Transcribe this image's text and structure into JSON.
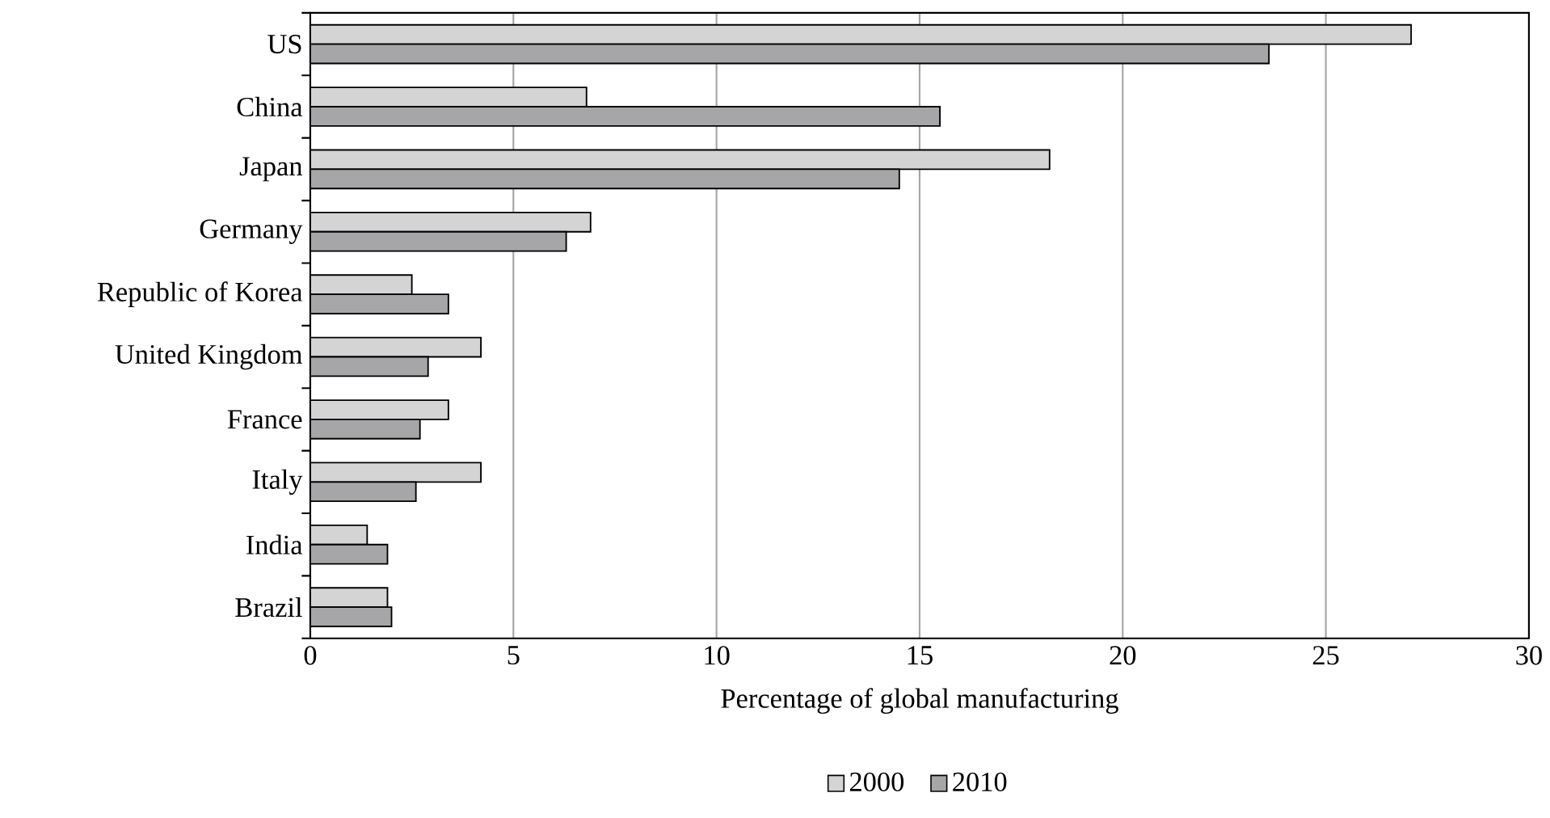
{
  "chart_data": {
    "type": "bar",
    "orientation": "horizontal",
    "xlabel": "Percentage of global manufacturing",
    "categories": [
      "US",
      "China",
      "Japan",
      "Germany",
      "Republic of Korea",
      "United Kingdom",
      "France",
      "Italy",
      "India",
      "Brazil"
    ],
    "series": [
      {
        "name": "2000",
        "color": "#d4d4d4",
        "values": [
          27.1,
          6.8,
          18.2,
          6.9,
          2.5,
          4.2,
          3.4,
          4.2,
          1.4,
          1.9
        ]
      },
      {
        "name": "2010",
        "color": "#a6a6a8",
        "values": [
          23.6,
          15.5,
          14.5,
          6.3,
          3.4,
          2.9,
          2.7,
          2.6,
          1.9,
          2.0
        ]
      }
    ],
    "xlim": [
      0,
      30
    ],
    "xticks": [
      0,
      5,
      10,
      15,
      20,
      25,
      30
    ],
    "grid": "x",
    "legend": "bottom"
  }
}
